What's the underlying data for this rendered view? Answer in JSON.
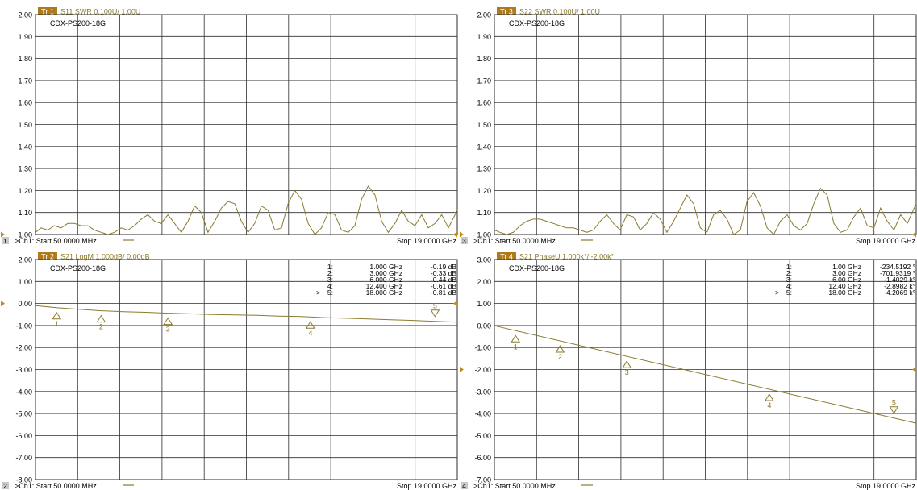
{
  "colors": {
    "trace": "#8a7a30",
    "grid": "#2e2e2e",
    "label_text": "#8a7a30",
    "title_badge": "#b07a1c",
    "title_text": "#8a7a30",
    "ref_arrow": "#c08a1c",
    "footer_text": "#000000",
    "ch_badge_bg": "#c8c8c8"
  },
  "chart_data": [
    {
      "type": "line",
      "badge": "Tr 1",
      "title": "S11 SWR 0.100U/  1.00U",
      "device": "CDX-PS200-18G",
      "channel_number": "1",
      "footer_start": ">Ch1: Start  50.0000 MHz",
      "footer_stop": "Stop  19.0000 GHz",
      "x_range": [
        0.05,
        19.0
      ],
      "ylim": [
        1.0,
        2.0
      ],
      "y_ticks": [
        "2.00",
        "1.90",
        "1.80",
        "1.70",
        "1.60",
        "1.50",
        "1.40",
        "1.30",
        "1.20",
        "1.10",
        "1.00"
      ],
      "ref_value": 1.0,
      "series": [
        {
          "x": [
            0.05,
            0.3,
            0.6,
            0.9,
            1.2,
            1.5,
            1.8,
            2.1,
            2.4,
            2.7,
            3.0,
            3.3,
            3.6,
            3.9,
            4.2,
            4.5,
            4.8,
            5.1,
            5.4,
            5.7,
            6.0,
            6.3,
            6.6,
            6.9,
            7.2,
            7.5,
            7.8,
            8.1,
            8.4,
            8.7,
            9.0,
            9.3,
            9.6,
            9.9,
            10.2,
            10.5,
            10.8,
            11.1,
            11.4,
            11.7,
            12.0,
            12.3,
            12.6,
            12.9,
            13.2,
            13.5,
            13.8,
            14.1,
            14.4,
            14.7,
            15.0,
            15.3,
            15.6,
            15.9,
            16.2,
            16.5,
            16.8,
            17.1,
            17.4,
            17.7,
            18.0,
            18.3,
            18.6,
            19.0
          ],
          "y": [
            1.01,
            1.03,
            1.02,
            1.04,
            1.03,
            1.05,
            1.05,
            1.04,
            1.04,
            1.02,
            1.01,
            1.0,
            1.01,
            1.03,
            1.02,
            1.04,
            1.07,
            1.09,
            1.06,
            1.05,
            1.09,
            1.05,
            1.01,
            1.06,
            1.13,
            1.1,
            1.01,
            1.06,
            1.12,
            1.15,
            1.14,
            1.06,
            1.01,
            1.05,
            1.13,
            1.11,
            1.02,
            1.03,
            1.14,
            1.2,
            1.16,
            1.05,
            1.0,
            1.03,
            1.1,
            1.09,
            1.02,
            1.01,
            1.04,
            1.16,
            1.22,
            1.18,
            1.06,
            1.01,
            1.05,
            1.11,
            1.06,
            1.04,
            1.09,
            1.03,
            1.05,
            1.09,
            1.03,
            1.11
          ]
        }
      ],
      "markers": []
    },
    {
      "type": "line",
      "badge": "Tr 3",
      "title": "S22 SWR 0.100U/  1.00U",
      "device": "CDX-PS200-18G",
      "channel_number": "3",
      "footer_start": ">Ch1: Start  50.0000 MHz",
      "footer_stop": "Stop  19.0000 GHz",
      "x_range": [
        0.05,
        19.0
      ],
      "ylim": [
        1.0,
        2.0
      ],
      "y_ticks": [
        "2.00",
        "1.90",
        "1.80",
        "1.70",
        "1.60",
        "1.50",
        "1.40",
        "1.30",
        "1.20",
        "1.10",
        "1.00"
      ],
      "ref_value": 1.0,
      "series": [
        {
          "x": [
            0.05,
            0.3,
            0.6,
            0.9,
            1.2,
            1.5,
            1.8,
            2.1,
            2.4,
            2.7,
            3.0,
            3.3,
            3.6,
            3.9,
            4.2,
            4.5,
            4.8,
            5.1,
            5.4,
            5.7,
            6.0,
            6.3,
            6.6,
            6.9,
            7.2,
            7.5,
            7.8,
            8.1,
            8.4,
            8.7,
            9.0,
            9.3,
            9.6,
            9.9,
            10.2,
            10.5,
            10.8,
            11.1,
            11.4,
            11.7,
            12.0,
            12.3,
            12.6,
            12.9,
            13.2,
            13.5,
            13.8,
            14.1,
            14.4,
            14.7,
            15.0,
            15.3,
            15.6,
            15.9,
            16.2,
            16.5,
            16.8,
            17.1,
            17.4,
            17.7,
            18.0,
            18.3,
            18.6,
            19.0
          ],
          "y": [
            1.02,
            1.01,
            1.0,
            1.01,
            1.04,
            1.06,
            1.07,
            1.07,
            1.06,
            1.05,
            1.04,
            1.03,
            1.03,
            1.02,
            1.01,
            1.02,
            1.06,
            1.09,
            1.05,
            1.02,
            1.09,
            1.08,
            1.02,
            1.05,
            1.1,
            1.07,
            1.01,
            1.06,
            1.12,
            1.18,
            1.14,
            1.03,
            1.01,
            1.09,
            1.11,
            1.07,
            1.0,
            1.02,
            1.15,
            1.19,
            1.13,
            1.03,
            1.0,
            1.06,
            1.09,
            1.04,
            1.02,
            1.05,
            1.14,
            1.21,
            1.18,
            1.05,
            1.01,
            1.02,
            1.08,
            1.12,
            1.04,
            1.03,
            1.12,
            1.06,
            1.02,
            1.09,
            1.05,
            1.14
          ]
        }
      ],
      "markers": []
    },
    {
      "type": "line",
      "badge": "Tr 2",
      "title": "S21 LogM 1.000dB/  0.00dB",
      "device": "CDX-PS200-18G",
      "channel_number": "2",
      "footer_start": ">Ch1: Start  50.0000 MHz",
      "footer_stop": "Stop  19.0000 GHz",
      "x_range": [
        0.05,
        19.0
      ],
      "ylim": [
        -8.0,
        2.0
      ],
      "y_ticks": [
        "2.00",
        "1.00",
        "0.00",
        "-1.00",
        "-2.00",
        "-3.00",
        "-4.00",
        "-5.00",
        "-6.00",
        "-7.00",
        "-8.00"
      ],
      "ref_value": 0.0,
      "series": [
        {
          "x": [
            0.05,
            1.0,
            2.0,
            3.0,
            4.0,
            5.0,
            6.0,
            7.0,
            8.0,
            9.0,
            10.0,
            11.0,
            12.0,
            12.4,
            13.0,
            14.0,
            15.0,
            16.0,
            17.0,
            18.0,
            19.0
          ],
          "y": [
            -0.1,
            -0.19,
            -0.26,
            -0.33,
            -0.37,
            -0.4,
            -0.44,
            -0.47,
            -0.5,
            -0.52,
            -0.54,
            -0.57,
            -0.59,
            -0.61,
            -0.64,
            -0.67,
            -0.7,
            -0.74,
            -0.77,
            -0.81,
            -0.85
          ]
        }
      ],
      "markers": [
        {
          "label": "1",
          "prefix": "",
          "x_value": 1.0,
          "x_text": "1.000 GHz",
          "y_value": -0.19,
          "y_text": "-0.19 dB",
          "direction": "up"
        },
        {
          "label": "2",
          "prefix": "",
          "x_value": 3.0,
          "x_text": "3.000 GHz",
          "y_value": -0.33,
          "y_text": "-0.33 dB",
          "direction": "up"
        },
        {
          "label": "3",
          "prefix": "",
          "x_value": 6.0,
          "x_text": "6.000 GHz",
          "y_value": -0.44,
          "y_text": "-0.44 dB",
          "direction": "up"
        },
        {
          "label": "4",
          "prefix": "",
          "x_value": 12.4,
          "x_text": "12.400 GHz",
          "y_value": -0.61,
          "y_text": "-0.61 dB",
          "direction": "up"
        },
        {
          "label": "5",
          "prefix": ">",
          "x_value": 18.0,
          "x_text": "18.000 GHz",
          "y_value": -0.81,
          "y_text": "-0.81 dB",
          "direction": "down"
        }
      ]
    },
    {
      "type": "line",
      "badge": "Tr 4",
      "title": "S21 PhaseU 1.000k°/  -2.00k°",
      "device": "CDX-PS200-18G",
      "channel_number": "4",
      "footer_start": ">Ch1: Start  50.0000 MHz",
      "footer_stop": "Stop  19.0000 GHz",
      "x_range": [
        0.05,
        19.0
      ],
      "ylim": [
        -7.0,
        3.0
      ],
      "y_ticks": [
        "3.00",
        "2.00",
        "1.00",
        "0.00",
        "-1.00",
        "-2.00",
        "-3.00",
        "-4.00",
        "-5.00",
        "-6.00",
        "-7.00"
      ],
      "ref_value": -2.0,
      "series": [
        {
          "x": [
            0.05,
            19.0
          ],
          "y": [
            -0.01,
            -4.44
          ]
        }
      ],
      "markers": [
        {
          "label": "1",
          "prefix": "",
          "x_value": 1.0,
          "x_text": "1.00 GHz",
          "y_value": -0.2345,
          "y_text": "-234.5192 °",
          "direction": "up"
        },
        {
          "label": "2",
          "prefix": "",
          "x_value": 3.0,
          "x_text": "3.00 GHz",
          "y_value": -0.7019,
          "y_text": "-701.9319 °",
          "direction": "up"
        },
        {
          "label": "3",
          "prefix": "",
          "x_value": 6.0,
          "x_text": "6.00 GHz",
          "y_value": -1.4029,
          "y_text": "-1.4029 k°",
          "direction": "up"
        },
        {
          "label": "4",
          "prefix": "",
          "x_value": 12.4,
          "x_text": "12.40 GHz",
          "y_value": -2.8982,
          "y_text": "-2.8982 k°",
          "direction": "up"
        },
        {
          "label": "5",
          "prefix": ">",
          "x_value": 18.0,
          "x_text": "18.00 GHz",
          "y_value": -4.2069,
          "y_text": "-4.2069 k°",
          "direction": "down"
        }
      ]
    }
  ]
}
